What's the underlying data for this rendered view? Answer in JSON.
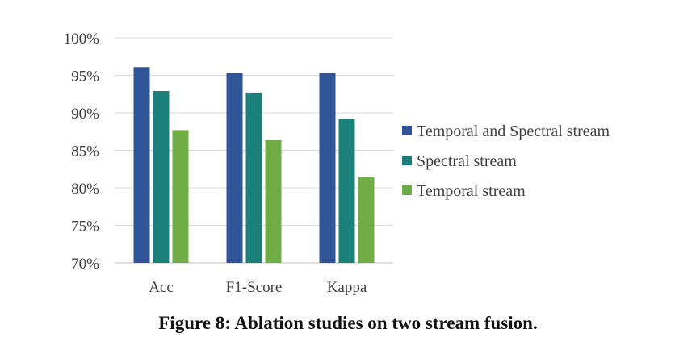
{
  "chart_data": {
    "type": "bar",
    "categories": [
      "Acc",
      "F1-Score",
      "Kappa"
    ],
    "series": [
      {
        "name": "Temporal and Spectral stream",
        "color": "#2f5597",
        "values": [
          96.1,
          95.3,
          95.3
        ]
      },
      {
        "name": "Spectral stream",
        "color": "#1b8079",
        "values": [
          92.9,
          92.7,
          89.2
        ]
      },
      {
        "name": "Temporal stream",
        "color": "#70ad47",
        "values": [
          87.7,
          86.4,
          81.5
        ]
      }
    ],
    "ylim": [
      70,
      100
    ],
    "yticks": [
      70,
      75,
      80,
      85,
      90,
      95,
      100
    ],
    "ytick_labels": [
      "70%",
      "75%",
      "80%",
      "85%",
      "90%",
      "95%",
      "100%"
    ],
    "grid": true,
    "legend": "right",
    "title": "",
    "xlabel": "",
    "ylabel": ""
  },
  "caption": "Figure 8: Ablation studies on two stream fusion."
}
